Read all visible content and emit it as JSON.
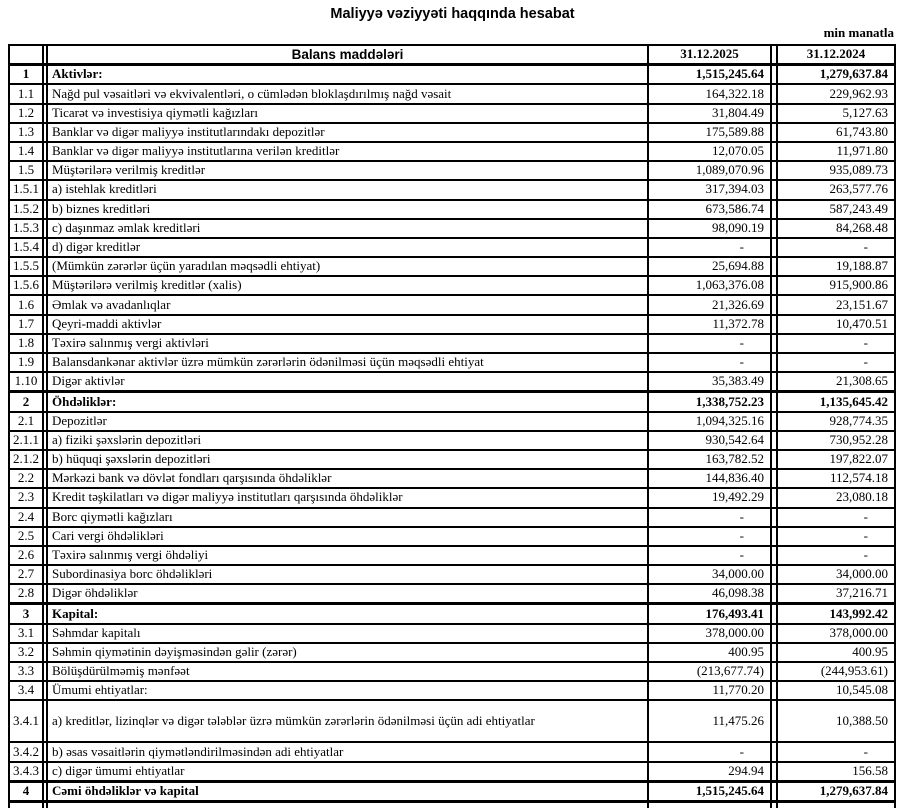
{
  "title": "Maliyyə vəziyyəti haqqında hesabat",
  "unit_note": "min manatla",
  "table": {
    "header": {
      "items": "Balans maddələri",
      "col2025": "31.12.2025",
      "col2024": "31.12.2024"
    },
    "rows": [
      {
        "no": "1",
        "label": "Aktivlər:",
        "v2025": "1,515,245.64",
        "v2024": "1,279,637.84",
        "bold": true
      },
      {
        "no": "1.1",
        "label": "Nağd pul vəsaitləri və  ekvivalentləri, o cümlədən bloklaşdırılmış nağd vəsait",
        "v2025": "164,322.18",
        "v2024": "229,962.93"
      },
      {
        "no": "1.2",
        "label": "Ticarət və investisiya qiymətli kağızları",
        "v2025": "31,804.49",
        "v2024": "5,127.63"
      },
      {
        "no": "1.3",
        "label": "Banklar və digər maliyyə institutlarındakı depozitlər",
        "v2025": "175,589.88",
        "v2024": "61,743.80"
      },
      {
        "no": "1.4",
        "label": "Banklar və digər maliyyə institutlarına verilən kreditlər",
        "v2025": "12,070.05",
        "v2024": "11,971.80"
      },
      {
        "no": "1.5",
        "label": "Müştərilərə verilmiş kreditlər",
        "v2025": "1,089,070.96",
        "v2024": "935,089.73"
      },
      {
        "no": "1.5.1",
        "label": "a) istehlak kreditləri",
        "v2025": "317,394.03",
        "v2024": "263,577.76"
      },
      {
        "no": "1.5.2",
        "label": "b) biznes kreditləri",
        "v2025": "673,586.74",
        "v2024": "587,243.49"
      },
      {
        "no": "1.5.3",
        "label": "c) daşınmaz əmlak kreditləri",
        "v2025": "98,090.19",
        "v2024": "84,268.48"
      },
      {
        "no": "1.5.4",
        "label": "d) digər kreditlər",
        "v2025": "-",
        "v2024": "-"
      },
      {
        "no": "1.5.5",
        "label": "(Mümkün zərərlər üçün yaradılan məqsədli ehtiyat)",
        "v2025": "25,694.88",
        "v2024": "19,188.87"
      },
      {
        "no": "1.5.6",
        "label": "Müştərilərə verilmiş kreditlər (xalis)",
        "v2025": "1,063,376.08",
        "v2024": "915,900.86"
      },
      {
        "no": "1.6",
        "label": "Əmlak və avadanlıqlar",
        "v2025": "21,326.69",
        "v2024": "23,151.67"
      },
      {
        "no": "1.7",
        "label": "Qeyri-maddi aktivlər",
        "v2025": "11,372.78",
        "v2024": "10,470.51"
      },
      {
        "no": "1.8",
        "label": "Təxirə salınmış vergi aktivləri",
        "v2025": "-",
        "v2024": "-"
      },
      {
        "no": "1.9",
        "label": "Balansdankənar aktivlər üzrə mümkün zərərlərin ödənilməsi üçün məqsədli ehtiyat",
        "v2025": "-",
        "v2024": "-"
      },
      {
        "no": "1.10",
        "label": "Digər aktivlər",
        "v2025": "35,383.49",
        "v2024": "21,308.65"
      },
      {
        "no": "2",
        "label": "Öhdəliklər:",
        "v2025": "1,338,752.23",
        "v2024": "1,135,645.42",
        "bold": true
      },
      {
        "no": "2.1",
        "label": "Depozitlər",
        "v2025": "1,094,325.16",
        "v2024": "928,774.35"
      },
      {
        "no": "2.1.1",
        "label": "a) fiziki şəxslərin depozitləri",
        "v2025": "930,542.64",
        "v2024": "730,952.28"
      },
      {
        "no": "2.1.2",
        "label": "b) hüquqi şəxslərin depozitləri",
        "v2025": "163,782.52",
        "v2024": "197,822.07"
      },
      {
        "no": "2.2",
        "label": "Mərkəzi bank və dövlət fondları qarşısında öhdəliklər",
        "v2025": "144,836.40",
        "v2024": "112,574.18"
      },
      {
        "no": "2.3",
        "label": "Kredit təşkilatları və digər maliyyə institutları qarşısında öhdəliklər",
        "v2025": "19,492.29",
        "v2024": "23,080.18"
      },
      {
        "no": "2.4",
        "label": "Borc qiymətli kağızları",
        "v2025": "-",
        "v2024": "-"
      },
      {
        "no": "2.5",
        "label": "Cari vergi öhdəlikləri",
        "v2025": "-",
        "v2024": "-"
      },
      {
        "no": "2.6",
        "label": "Təxirə salınmış vergi öhdəliyi",
        "v2025": "-",
        "v2024": "-"
      },
      {
        "no": "2.7",
        "label": "Subordinasiya borc öhdəlikləri",
        "v2025": "34,000.00",
        "v2024": "34,000.00"
      },
      {
        "no": "2.8",
        "label": "Digər öhdəliklər",
        "v2025": "46,098.38",
        "v2024": "37,216.71"
      },
      {
        "no": "3",
        "label": "Kapital:",
        "v2025": "176,493.41",
        "v2024": "143,992.42",
        "bold": true
      },
      {
        "no": "3.1",
        "label": "Səhmdar kapitalı",
        "v2025": "378,000.00",
        "v2024": "378,000.00"
      },
      {
        "no": "3.2",
        "label": "Səhmin qiymətinin dəyişməsindən gəlir (zərər)",
        "v2025": "400.95",
        "v2024": "400.95"
      },
      {
        "no": "3.3",
        "label": "Bölüşdürülməmiş mənfəət",
        "v2025": "(213,677.74)",
        "v2024": "(244,953.61)"
      },
      {
        "no": "3.4",
        "label": "Ümumi ehtiyatlar:",
        "v2025": "11,770.20",
        "v2024": "10,545.08"
      },
      {
        "no": "3.4.1",
        "label": "a) kreditlər, lizinqlər və digər tələblər üzrə mümkün zərərlərin ödənilməsi üçün adi ehtiyatlar",
        "v2025": "11,475.26",
        "v2024": "10,388.50",
        "tall": true
      },
      {
        "no": "3.4.2",
        "label": "b) əsas vəsaitlərin qiymətləndirilməsindən adi ehtiyatlar",
        "v2025": "-",
        "v2024": "-"
      },
      {
        "no": "3.4.3",
        "label": "c) digər ümumi ehtiyatlar",
        "v2025": "294.94",
        "v2024": "156.58"
      },
      {
        "no": "4",
        "label": "Cəmi öhdəliklər və kapital",
        "v2025": "1,515,245.64",
        "v2024": "1,279,637.84",
        "bold": true
      }
    ]
  }
}
